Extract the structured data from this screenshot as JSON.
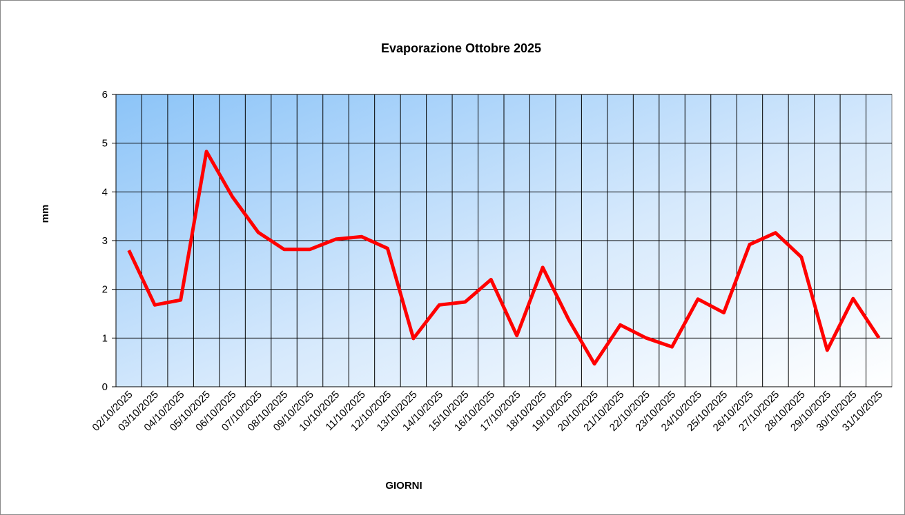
{
  "chart_data": {
    "type": "line",
    "title": "Evaporazione Ottobre 2025",
    "x_label": "GIORNI",
    "y_label": "mm",
    "categories": [
      "02/10/2025",
      "03/10/2025",
      "04/10/2025",
      "05/10/2025",
      "06/10/2025",
      "07/10/2025",
      "08/10/2025",
      "09/10/2025",
      "10/10/2025",
      "11/10/2025",
      "12/10/2025",
      "13/10/2025",
      "14/10/2025",
      "15/10/2025",
      "16/10/2025",
      "17/10/2025",
      "18/10/2025",
      "19/10/2025",
      "20/10/2025",
      "21/10/2025",
      "22/10/2025",
      "23/10/2025",
      "24/10/2025",
      "25/10/2025",
      "26/10/2025",
      "27/10/2025",
      "28/10/2025",
      "29/10/2025",
      "30/10/2025",
      "31/10/2025"
    ],
    "values": [
      2.8,
      1.68,
      1.78,
      4.83,
      3.9,
      3.17,
      2.82,
      2.82,
      3.03,
      3.08,
      2.84,
      0.99,
      1.68,
      1.74,
      2.2,
      1.05,
      2.45,
      1.38,
      0.47,
      1.27,
      1.0,
      0.82,
      1.8,
      1.52,
      2.92,
      3.16,
      2.66,
      0.75,
      1.81,
      1.0
    ],
    "color": "#ff0000",
    "ylim": [
      0,
      6
    ],
    "yticks": [
      0,
      1,
      2,
      3,
      4,
      5,
      6
    ],
    "grid": true
  }
}
